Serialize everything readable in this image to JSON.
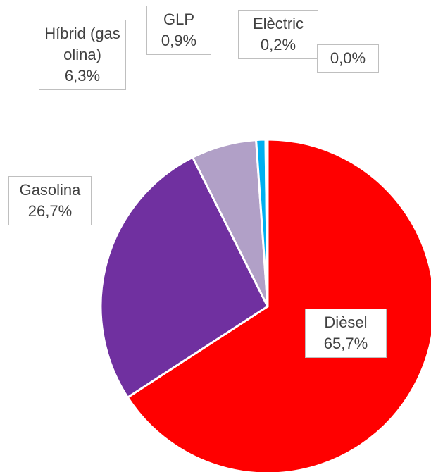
{
  "chart_data": {
    "type": "pie",
    "categories": [
      "Dièsel",
      "Gasolina",
      "Híbrid (gasolina)",
      "GLP",
      "Elèctric",
      null
    ],
    "values": [
      65.7,
      26.7,
      6.3,
      0.9,
      0.2,
      0.0
    ],
    "value_labels": [
      "65,7%",
      "26,7%",
      "6,3%",
      "0,9%",
      "0,2%",
      "0,0%"
    ],
    "colors": [
      "#ff0000",
      "#7030a0",
      "#b1a0c7",
      "#00b0f0",
      "#0070c0",
      "#92d050"
    ]
  }
}
